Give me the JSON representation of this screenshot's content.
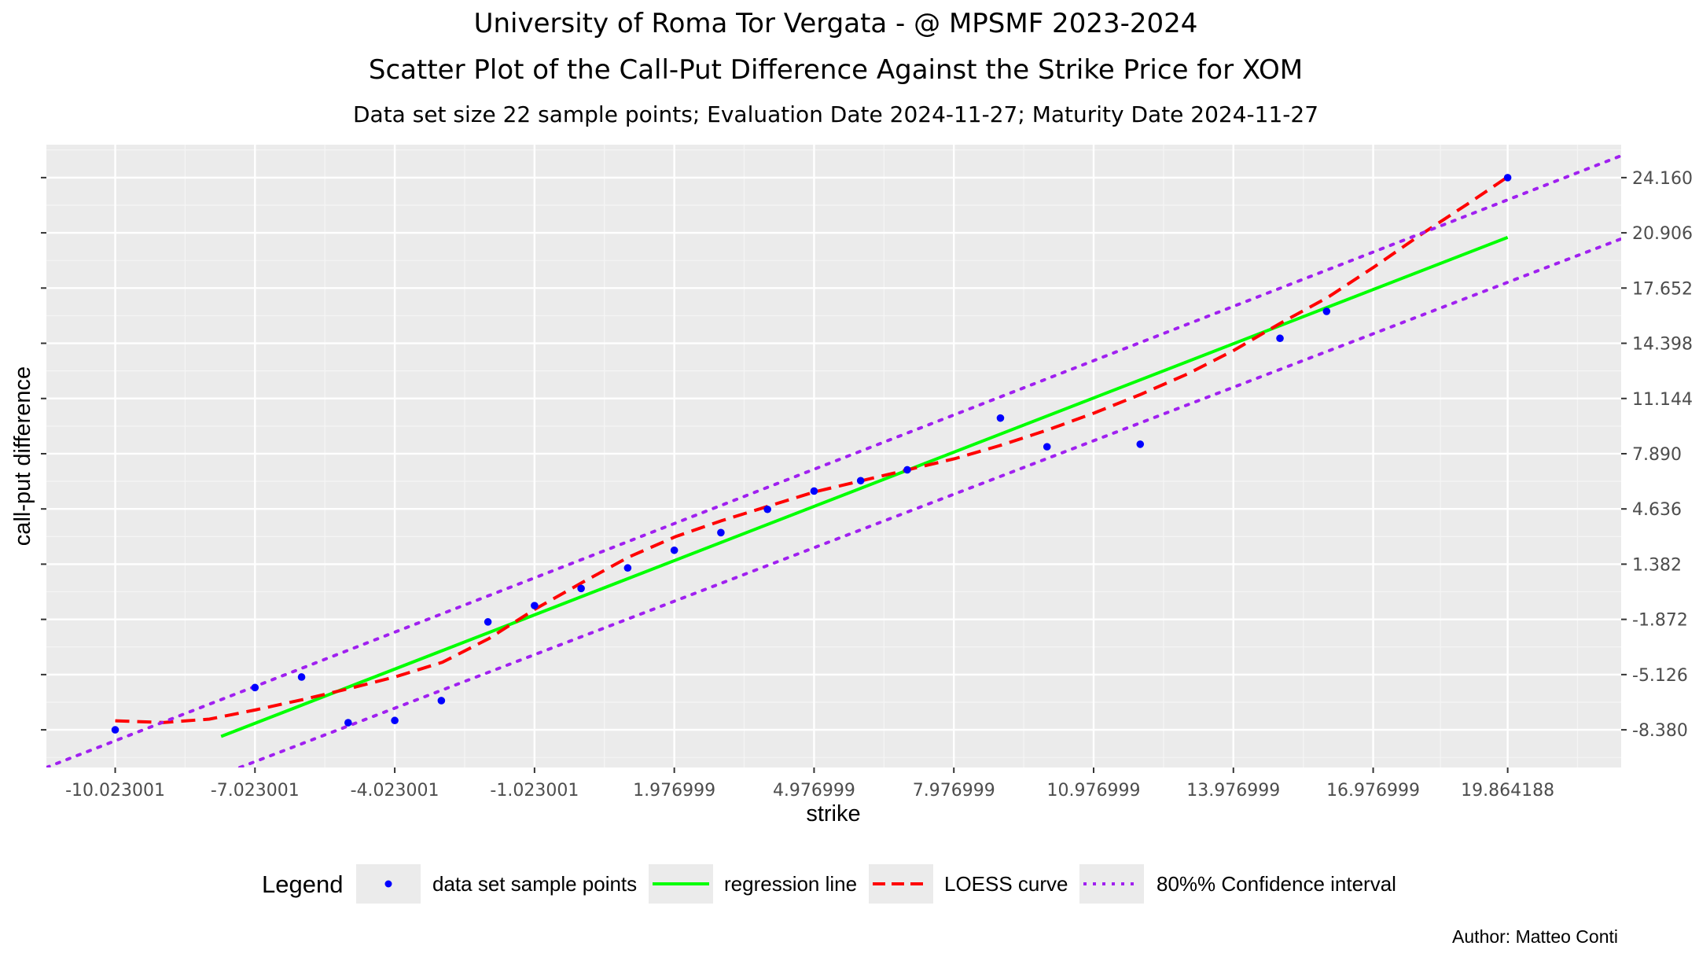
{
  "chart_data": {
    "type": "scatter",
    "title": "University of Roma Tor Vergata - @ MPSMF 2023-2024",
    "subtitle": "Scatter Plot of the Call-Put Difference Against the Strike Price for  XOM",
    "caption": "Data set size  22  sample points;    Evaluation Date 2024-11-27;   Maturity Date 2024-11-27",
    "xlabel": "strike",
    "ylabel": "call-put difference",
    "xlim": [
      -11.5,
      22.3
    ],
    "ylim": [
      -10.6,
      26.1
    ],
    "x_ticks": [
      -10.023001,
      -7.023001,
      -4.023001,
      -1.023001,
      1.976999,
      4.976999,
      7.976999,
      10.976999,
      13.976999,
      16.976999,
      19.864188
    ],
    "x_tick_labels": [
      "-10.023001",
      "-7.023001",
      "-4.023001",
      "-1.023001",
      "1.976999",
      "4.976999",
      "7.976999",
      "10.976999",
      "13.976999",
      "16.976999",
      "19.864188"
    ],
    "y_ticks": [
      -8.38,
      -5.126,
      -1.872,
      1.382,
      4.636,
      7.89,
      11.144,
      14.398,
      17.652,
      20.906,
      24.16
    ],
    "y_tick_labels": [
      "-8.380",
      "-5.126",
      "-1.872",
      "1.382",
      "4.636",
      "7.890",
      "11.144",
      "14.398",
      "17.652",
      "20.906",
      "24.160"
    ],
    "y_axis_position": "right",
    "grid": true,
    "series": [
      {
        "name": "data set sample points",
        "kind": "points",
        "color": "#0000ff",
        "x": [
          -10.023,
          -7.023,
          -6.023,
          -5.023,
          -4.023,
          -3.023,
          -2.023,
          -1.023,
          -0.023,
          0.977,
          1.977,
          2.977,
          3.977,
          4.977,
          5.977,
          6.977,
          8.977,
          9.977,
          11.977,
          14.977,
          15.977,
          19.864
        ],
        "y": [
          -8.38,
          -5.89,
          -5.27,
          -7.96,
          -7.83,
          -6.66,
          -2.02,
          -1.06,
          -0.05,
          1.16,
          2.2,
          3.24,
          4.61,
          5.69,
          6.3,
          6.94,
          9.99,
          8.3,
          8.45,
          14.69,
          16.28,
          24.16
        ]
      },
      {
        "name": "regression line",
        "kind": "line",
        "style": "solid",
        "color": "#00ff00",
        "x": [
          -7.75,
          19.864
        ],
        "y": [
          -8.77,
          20.64
        ]
      },
      {
        "name": "LOESS curve",
        "kind": "line",
        "style": "dashed",
        "color": "#ff0000",
        "x": [
          -10.023,
          -9.0,
          -8.0,
          -7.0,
          -6.0,
          -5.0,
          -4.0,
          -3.0,
          -2.0,
          -1.0,
          0.0,
          1.0,
          2.0,
          3.0,
          4.0,
          5.0,
          6.0,
          7.0,
          8.0,
          9.0,
          10.0,
          11.0,
          12.0,
          13.0,
          14.0,
          15.0,
          16.0,
          17.0,
          18.0,
          19.0,
          19.864
        ],
        "y": [
          -7.85,
          -7.95,
          -7.75,
          -7.2,
          -6.6,
          -5.95,
          -5.25,
          -4.4,
          -3.0,
          -1.25,
          0.3,
          1.8,
          3.0,
          3.95,
          4.8,
          5.65,
          6.3,
          6.95,
          7.6,
          8.4,
          9.3,
          10.3,
          11.4,
          12.6,
          14.0,
          15.6,
          17.1,
          18.9,
          20.8,
          22.6,
          24.2
        ]
      },
      {
        "name": "80%% Confidence interval",
        "kind": "line",
        "style": "dotted",
        "color": "#a020f0",
        "x": [
          -11.5,
          22.3
        ],
        "y": [
          -10.6,
          25.45
        ],
        "x_lower": [
          -7.35,
          22.3
        ],
        "y_lower": [
          -10.6,
          20.55
        ]
      }
    ],
    "legend": {
      "title": "Legend",
      "position": "bottom",
      "entries": [
        "data set sample points",
        "regression line",
        "LOESS curve",
        "80%% Confidence interval"
      ]
    },
    "author": "Author: Matteo Conti"
  },
  "colors": {
    "panel_bg": "#ebebeb",
    "grid_major": "#ffffff",
    "grid_minor": "#f5f5f5",
    "points": "#0000ff",
    "regression": "#00ff00",
    "loess": "#ff0000",
    "confidence": "#a020f0"
  }
}
